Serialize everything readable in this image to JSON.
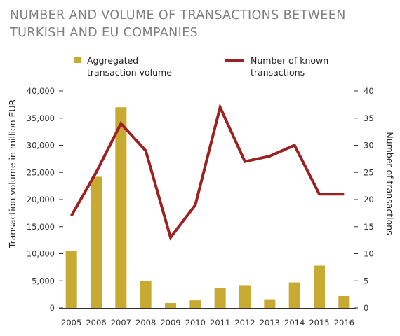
{
  "chart_data": {
    "type": "bar",
    "title": "NUMBER AND VOLUME OF TRANSACTIONS BETWEEN TURKISH AND EU COMPANIES",
    "categories": [
      "2005",
      "2006",
      "2007",
      "2008",
      "2009",
      "2010",
      "2011",
      "2012",
      "2013",
      "2014",
      "2015",
      "2016"
    ],
    "series": [
      {
        "name": "Aggregated transaction volume",
        "type": "bar",
        "axis": "left",
        "color": "#c8aa32",
        "values": [
          10500,
          24200,
          37000,
          5000,
          900,
          1400,
          3700,
          4200,
          1600,
          4700,
          7800,
          2200
        ]
      },
      {
        "name": "Number of known transactions",
        "type": "line",
        "axis": "right",
        "color": "#9c2222",
        "values": [
          17,
          25,
          34,
          29,
          13,
          19,
          37,
          27,
          28,
          30,
          21,
          21
        ]
      }
    ],
    "ylabel": "Transaction volume in million EUR",
    "y2label": "Number of transactions",
    "ylim": [
      0,
      40000
    ],
    "y2lim": [
      0,
      40
    ],
    "yticks": [
      "0",
      "5,000",
      "10,000",
      "15,000",
      "20,000",
      "25,000",
      "30,000",
      "35,000",
      "40,000"
    ],
    "y2ticks": [
      "0",
      "5",
      "10",
      "15",
      "20",
      "25",
      "30",
      "35",
      "40"
    ],
    "legend_lines": [
      [
        "Aggregated",
        "transaction volume"
      ],
      [
        "Number of known",
        "transactions"
      ]
    ],
    "legend_position": "top",
    "grid": false
  }
}
